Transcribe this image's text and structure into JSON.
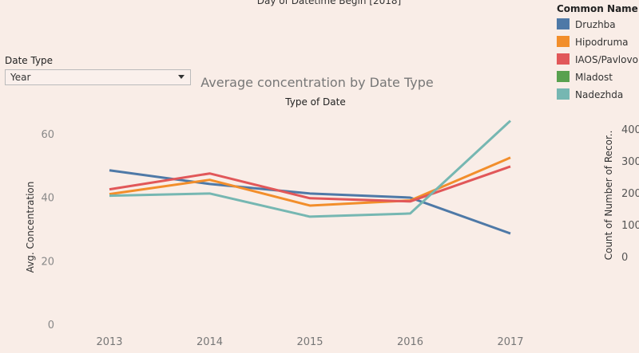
{
  "header": {
    "top_title": "Day of Datetime Begin [2018]"
  },
  "filter": {
    "label": "Date Type",
    "value": "Year"
  },
  "chart_data": {
    "type": "line",
    "title": "Average concentration by Date Type",
    "subtitle": "Type of Date",
    "y_label": "Avg. Concentration",
    "y2_label": "Count of Number of Recor..",
    "legend_title": "Common Name",
    "legend": "right",
    "grid": false,
    "categories": [
      "2013",
      "2014",
      "2015",
      "2016",
      "2017"
    ],
    "series": [
      {
        "name": "Druzhba",
        "color": "#4e79a7",
        "values": [
          48.5,
          44.2,
          41.2,
          39.9,
          28.6
        ]
      },
      {
        "name": "Hipodruma",
        "color": "#f28e2b",
        "values": [
          41,
          45.5,
          37.4,
          39,
          52.5
        ]
      },
      {
        "name": "IAOS/Pavlovo",
        "color": "#e15759",
        "values": [
          42.5,
          47.5,
          39.7,
          38.7,
          49.7
        ]
      },
      {
        "name": "Mladost",
        "color": "#59a14f",
        "values": [
          null,
          null,
          null,
          null,
          null
        ]
      },
      {
        "name": "Nadezhda",
        "color": "#76b7b2",
        "values": [
          40.5,
          41.2,
          33.9,
          34.9,
          64.1
        ]
      }
    ],
    "ylim": [
      0,
      67
    ],
    "yticks": [
      0,
      20,
      40,
      60
    ],
    "y2lim": [
      -212,
      455
    ],
    "y2ticks": [
      0,
      100,
      200,
      300,
      400
    ]
  }
}
